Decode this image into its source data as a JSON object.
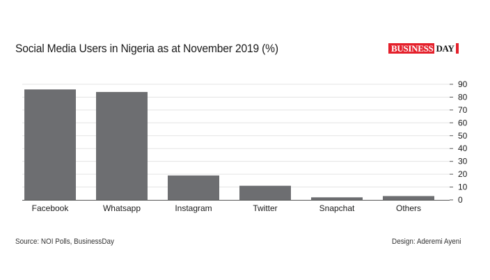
{
  "header": {
    "title": "Social Media Users in Nigeria as at November 2019 (%)",
    "logo_main": "BUSINESS",
    "logo_accent": "DAY"
  },
  "footer": {
    "source": "Source: NOI Polls, BusinessDay",
    "design": "Design: Aderemi Ayeni"
  },
  "colors": {
    "bar": "#6d6e71",
    "grid": "#e3e3e3",
    "axis": "#555555",
    "logo_red": "#e4202b"
  },
  "chart_data": {
    "type": "bar",
    "title": "Social Media Users in Nigeria as at November 2019 (%)",
    "categories": [
      "Facebook",
      "Whatsapp",
      "Instagram",
      "Twitter",
      "Snapchat",
      "Others"
    ],
    "values": [
      86,
      84,
      19,
      11,
      2,
      3
    ],
    "ylim": [
      0,
      90
    ],
    "yticks": [
      0,
      10,
      20,
      30,
      40,
      50,
      60,
      70,
      80,
      90
    ],
    "y_axis_position": "right",
    "grid": true,
    "legend": "none"
  }
}
